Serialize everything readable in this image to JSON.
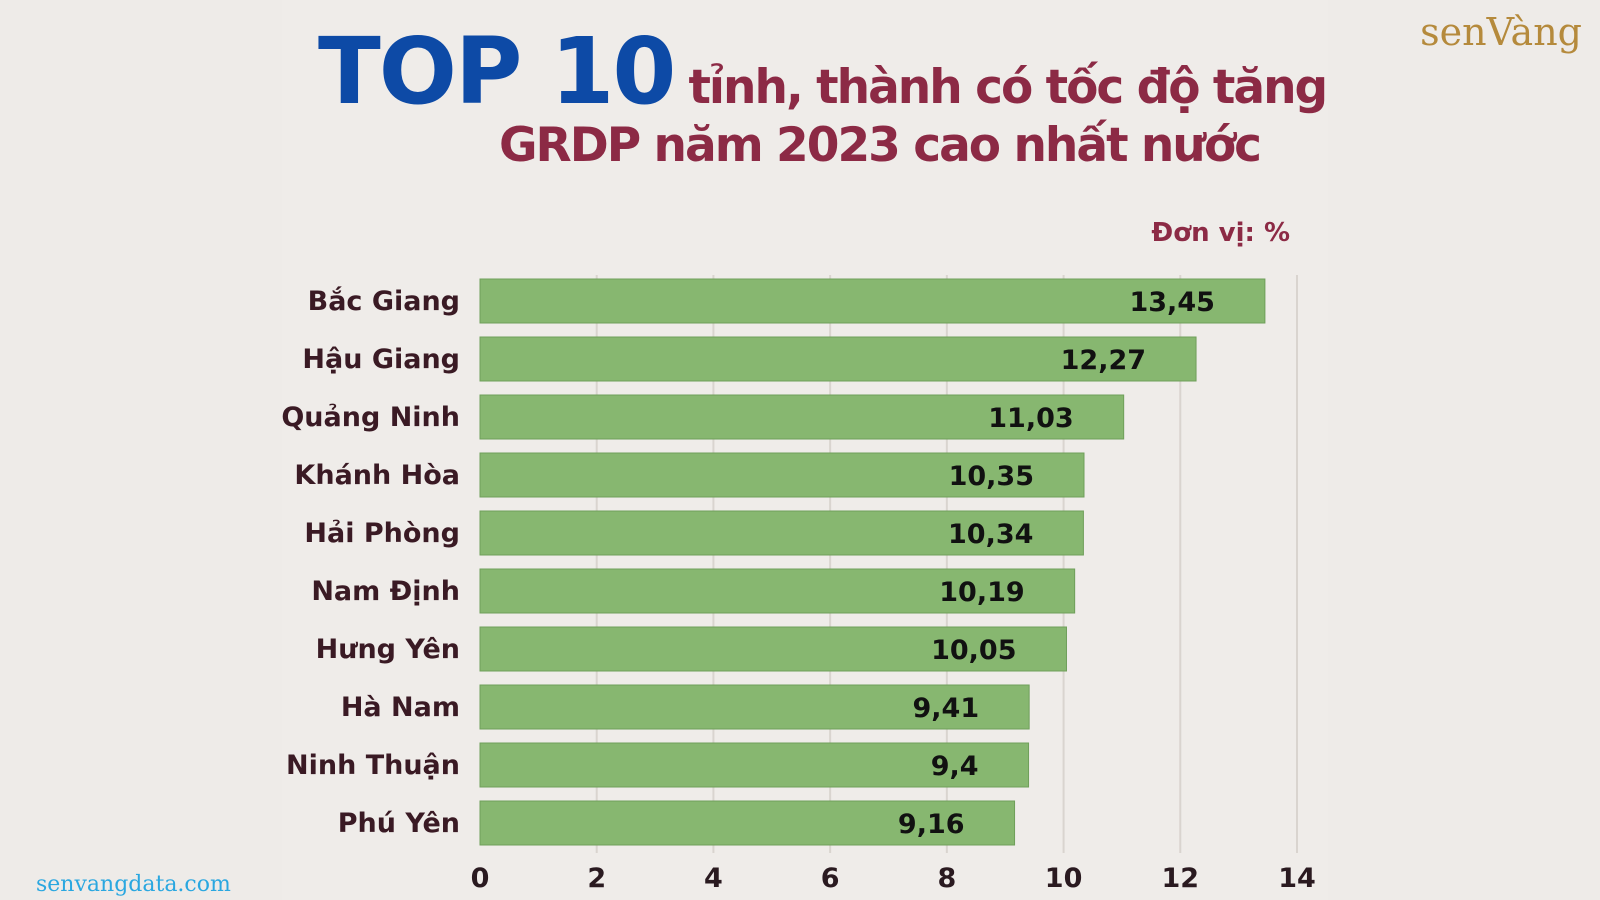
{
  "header": {
    "title_big": "TOP 10",
    "title_line1": "tỉnh, thành có tốc độ tăng",
    "title_line2": "GRDP năm 2023 cao nhất nước",
    "unit": "Đơn vị: %"
  },
  "brand": {
    "logo_text": "senVàng"
  },
  "footer": {
    "site": "senvangdata.com"
  },
  "colors": {
    "bar": "#87b770",
    "bar_edge": "#6f9f5a",
    "title_blue": "#0d4aa6",
    "title_red": "#8c2a45",
    "grid": "#d9d4cf"
  },
  "chart_data": {
    "type": "bar",
    "orientation": "horizontal",
    "categories": [
      "Bắc Giang",
      "Hậu Giang",
      "Quảng Ninh",
      "Khánh Hòa",
      "Hải Phòng",
      "Nam Định",
      "Hưng Yên",
      "Hà Nam",
      "Ninh Thuận",
      "Phú Yên"
    ],
    "values": [
      13.45,
      12.27,
      11.03,
      10.35,
      10.34,
      10.19,
      10.05,
      9.41,
      9.4,
      9.16
    ],
    "value_labels": [
      "13,45",
      "12,27",
      "11,03",
      "10,35",
      "10,34",
      "10,19",
      "10,05",
      "9,41",
      "9,4",
      "9,16"
    ],
    "xticks": [
      0,
      2,
      4,
      6,
      8,
      10,
      12,
      14
    ],
    "xlim": [
      0,
      14
    ],
    "grid": "vertical"
  }
}
